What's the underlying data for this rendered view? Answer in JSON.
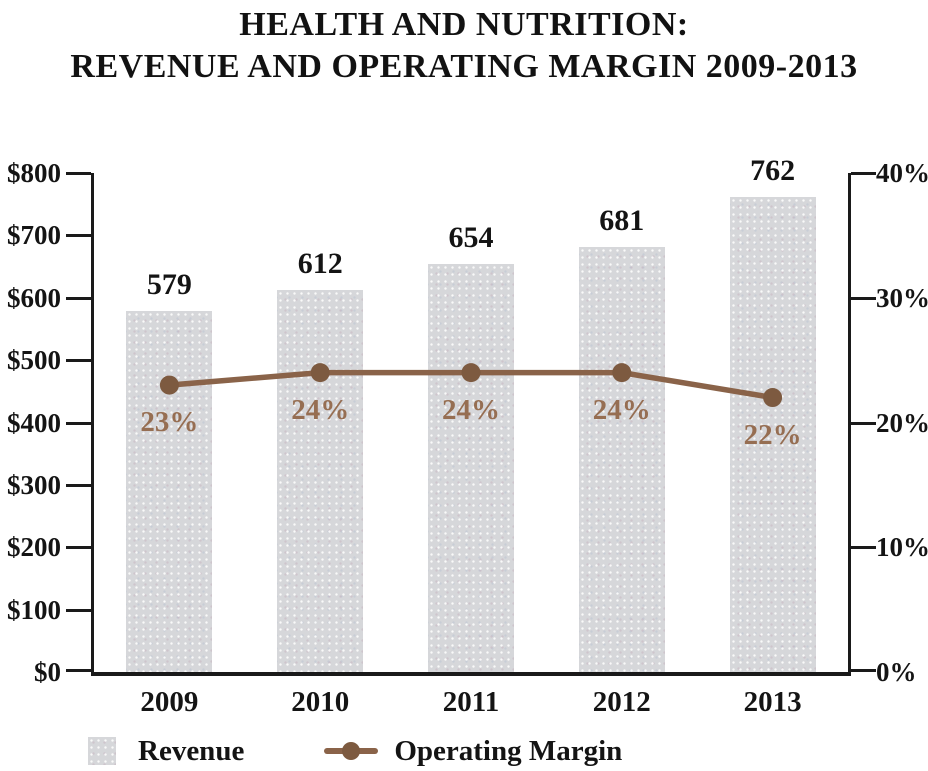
{
  "title": {
    "line1": "HEALTH AND NUTRITION:",
    "line2": "REVENUE AND OPERATING MARGIN 2009-2013"
  },
  "chart_data": {
    "type": "bar",
    "subtype": "combo-bar-line-dual-axis",
    "categories": [
      "2009",
      "2010",
      "2011",
      "2012",
      "2013"
    ],
    "series": [
      {
        "name": "Revenue",
        "type": "bar",
        "axis": "left",
        "values": [
          579,
          612,
          654,
          681,
          762
        ],
        "value_labels": [
          "579",
          "612",
          "654",
          "681",
          "762"
        ]
      },
      {
        "name": "Operating Margin",
        "type": "line",
        "axis": "right",
        "values": [
          23,
          24,
          24,
          24,
          22
        ],
        "value_labels": [
          "23%",
          "24%",
          "24%",
          "24%",
          "22%"
        ]
      }
    ],
    "left_axis": {
      "min": 0,
      "max": 800,
      "tick_labels": [
        "$800",
        "$700",
        "$600",
        "$500",
        "$400",
        "$300",
        "$200",
        "$100",
        "$0"
      ]
    },
    "right_axis": {
      "min": 0,
      "max": 40,
      "tick_labels": [
        "40%",
        "30%",
        "20%",
        "10%",
        "0%"
      ]
    },
    "grid": "off",
    "legend_position": "bottom-left",
    "legend": [
      {
        "label": "Revenue",
        "marker": "gray-bar-swatch"
      },
      {
        "label": "Operating Margin",
        "marker": "brown-line-dot"
      }
    ]
  },
  "colors": {
    "bar_fill": "#d6d7da",
    "line": "#8a6349",
    "line_dot": "#7d5a40",
    "pct_text": "#966e52",
    "axis": "#1a1a1a",
    "text": "#141414"
  }
}
